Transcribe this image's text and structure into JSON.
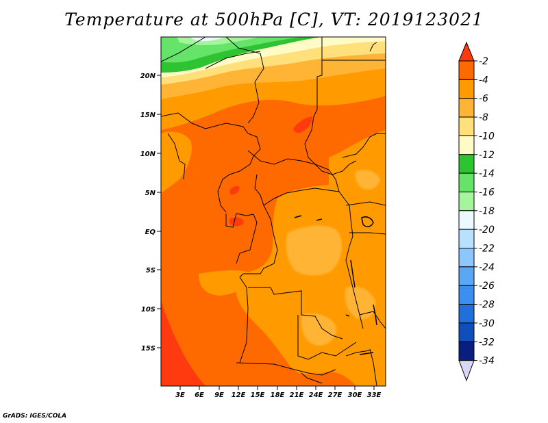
{
  "title": "Temperature at 500hPa [C], VT: 2019123021",
  "credit": "GrADS: IGES/COLA",
  "map": {
    "variable": "Temperature",
    "level": "500hPa",
    "units": "C",
    "valid_time": "2019123021",
    "lon_ticks": [
      "3E",
      "6E",
      "9E",
      "12E",
      "15E",
      "18E",
      "21E",
      "24E",
      "27E",
      "30E",
      "33E"
    ],
    "lat_ticks": [
      "20N",
      "15N",
      "10N",
      "5N",
      "EQ",
      "5S",
      "10S",
      "15S"
    ],
    "lon_range_deg": [
      0,
      35
    ],
    "lat_range_deg": [
      -20,
      24.5
    ]
  },
  "colorbar": {
    "labels": [
      "-2",
      "-4",
      "-6",
      "-8",
      "-10",
      "-12",
      "-14",
      "-16",
      "-18",
      "-20",
      "-22",
      "-24",
      "-26",
      "-28",
      "-30",
      "-32",
      "-34"
    ],
    "colors": [
      "#ff3a0f",
      "#ff6a00",
      "#ff9a00",
      "#ffb436",
      "#ffe07a",
      "#fffbc6",
      "#2ec330",
      "#66e46a",
      "#a4f59c",
      "#ecfaff",
      "#b8e0ff",
      "#8cc6ff",
      "#5aa8f5",
      "#3c8ef0",
      "#2070dc",
      "#0f4fbc",
      "#081e80",
      "#d8d8f5"
    ]
  }
}
